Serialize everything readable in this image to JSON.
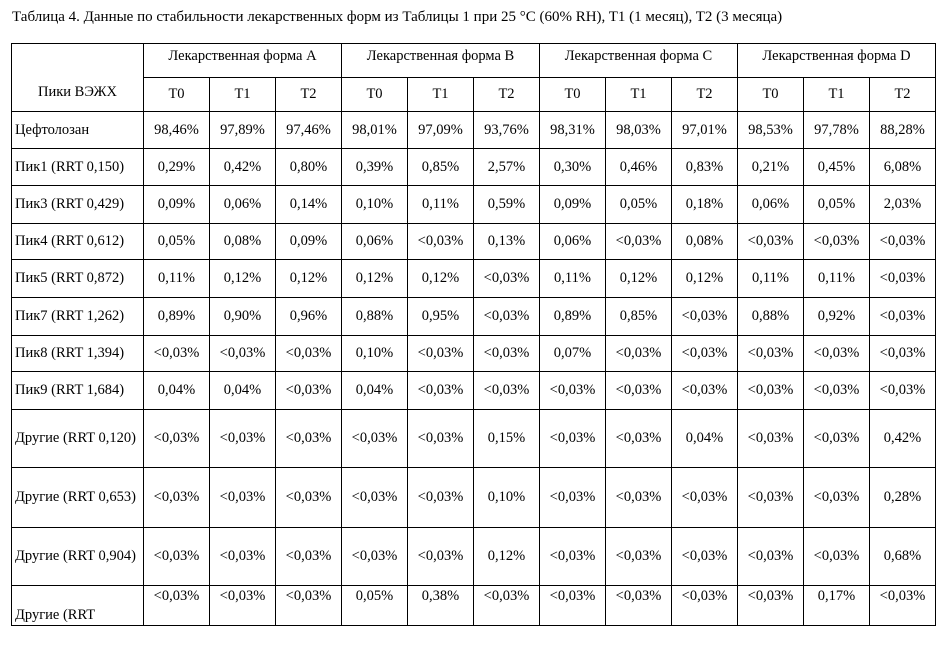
{
  "caption": "Таблица 4. Данные по стабильности лекарственных форм из Таблицы 1 при 25 °C (60% RH), T1 (1 месяц), T2 (3 месяца)",
  "table": {
    "corner": "Пики ВЭЖХ",
    "groups": [
      "Лекарственная форма A",
      "Лекарственная форма B",
      "Лекарственная форма C",
      "Лекарственная форма D"
    ],
    "timepoints": [
      "T0",
      "T1",
      "T2"
    ],
    "rows": [
      {
        "label": "Цефтолозан",
        "values": [
          "98,46%",
          "97,89%",
          "97,46%",
          "98,01%",
          "97,09%",
          "93,76%",
          "98,31%",
          "98,03%",
          "97,01%",
          "98,53%",
          "97,78%",
          "88,28%"
        ]
      },
      {
        "label": "Пик1 (RRT 0,150)",
        "values": [
          "0,29%",
          "0,42%",
          "0,80%",
          "0,39%",
          "0,85%",
          "2,57%",
          "0,30%",
          "0,46%",
          "0,83%",
          "0,21%",
          "0,45%",
          "6,08%"
        ]
      },
      {
        "label": "Пик3 (RRT 0,429)",
        "values": [
          "0,09%",
          "0,06%",
          "0,14%",
          "0,10%",
          "0,11%",
          "0,59%",
          "0,09%",
          "0,05%",
          "0,18%",
          "0,06%",
          "0,05%",
          "2,03%"
        ]
      },
      {
        "label": "Пик4 (RRT 0,612)",
        "values": [
          "0,05%",
          "0,08%",
          "0,09%",
          "0,06%",
          "<0,03%",
          "0,13%",
          "0,06%",
          "<0,03%",
          "0,08%",
          "<0,03%",
          "<0,03%",
          "<0,03%"
        ]
      },
      {
        "label": "Пик5 (RRT 0,872)",
        "values": [
          "0,11%",
          "0,12%",
          "0,12%",
          "0,12%",
          "0,12%",
          "<0,03%",
          "0,11%",
          "0,12%",
          "0,12%",
          "0,11%",
          "0,11%",
          "<0,03%"
        ]
      },
      {
        "label": "Пик7 (RRT 1,262)",
        "values": [
          "0,89%",
          "0,90%",
          "0,96%",
          "0,88%",
          "0,95%",
          "<0,03%",
          "0,89%",
          "0,85%",
          "<0,03%",
          "0,88%",
          "0,92%",
          "<0,03%"
        ]
      },
      {
        "label": "Пик8 (RRT 1,394)",
        "values": [
          "<0,03%",
          "<0,03%",
          "<0,03%",
          "0,10%",
          "<0,03%",
          "<0,03%",
          "0,07%",
          "<0,03%",
          "<0,03%",
          "<0,03%",
          "<0,03%",
          "<0,03%"
        ]
      },
      {
        "label": "Пик9 (RRT 1,684)",
        "values": [
          "0,04%",
          "0,04%",
          "<0,03%",
          "0,04%",
          "<0,03%",
          "<0,03%",
          "<0,03%",
          "<0,03%",
          "<0,03%",
          "<0,03%",
          "<0,03%",
          "<0,03%"
        ]
      },
      {
        "label": "Другие (RRT 0,120)",
        "values": [
          "<0,03%",
          "<0,03%",
          "<0,03%",
          "<0,03%",
          "<0,03%",
          "0,15%",
          "<0,03%",
          "<0,03%",
          "0,04%",
          "<0,03%",
          "<0,03%",
          "0,42%"
        ]
      },
      {
        "label": "Другие (RRT 0,653)",
        "values": [
          "<0,03%",
          "<0,03%",
          "<0,03%",
          "<0,03%",
          "<0,03%",
          "0,10%",
          "<0,03%",
          "<0,03%",
          "<0,03%",
          "<0,03%",
          "<0,03%",
          "0,28%"
        ]
      },
      {
        "label": "Другие (RRT 0,904)",
        "values": [
          "<0,03%",
          "<0,03%",
          "<0,03%",
          "<0,03%",
          "<0,03%",
          "0,12%",
          "<0,03%",
          "<0,03%",
          "<0,03%",
          "<0,03%",
          "<0,03%",
          "0,68%"
        ]
      },
      {
        "label": "Другие (RRT",
        "values": [
          "<0,03%",
          "<0,03%",
          "<0,03%",
          "0,05%",
          "0,38%",
          "<0,03%",
          "<0,03%",
          "<0,03%",
          "<0,03%",
          "<0,03%",
          "0,17%",
          "<0,03%"
        ]
      }
    ]
  }
}
